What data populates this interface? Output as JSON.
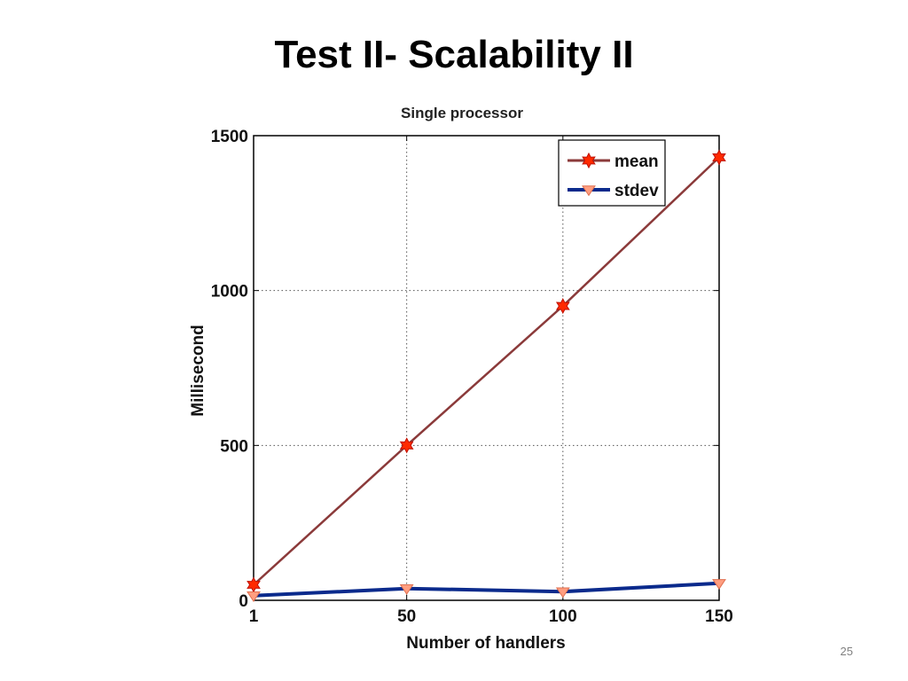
{
  "slide": {
    "title": "Test II- Scalability II",
    "page_number": "25"
  },
  "chart_data": {
    "type": "line",
    "title": "Single processor",
    "xlabel": "Number of handlers",
    "ylabel": "Millisecond",
    "x_ticks": [
      1,
      50,
      100,
      150
    ],
    "x_tick_labels": [
      "1",
      "50",
      "100",
      "150"
    ],
    "y_ticks": [
      0,
      500,
      1000,
      1500
    ],
    "y_tick_labels": [
      "0",
      "500",
      "1000",
      "1500"
    ],
    "xlim": [
      1,
      150
    ],
    "ylim": [
      0,
      1500
    ],
    "grid": true,
    "legend_position": "top-right",
    "x": [
      1,
      50,
      100,
      150
    ],
    "series": [
      {
        "name": "mean",
        "values": [
          50,
          500,
          950,
          1430
        ],
        "color": "#8b3a3a",
        "marker": "hexagram",
        "marker_fill": "#ff2a00"
      },
      {
        "name": "stdev",
        "values": [
          15,
          38,
          28,
          55
        ],
        "color": "#0a2a8c",
        "marker": "triangle-down",
        "marker_fill": "#ff9e80"
      }
    ]
  }
}
